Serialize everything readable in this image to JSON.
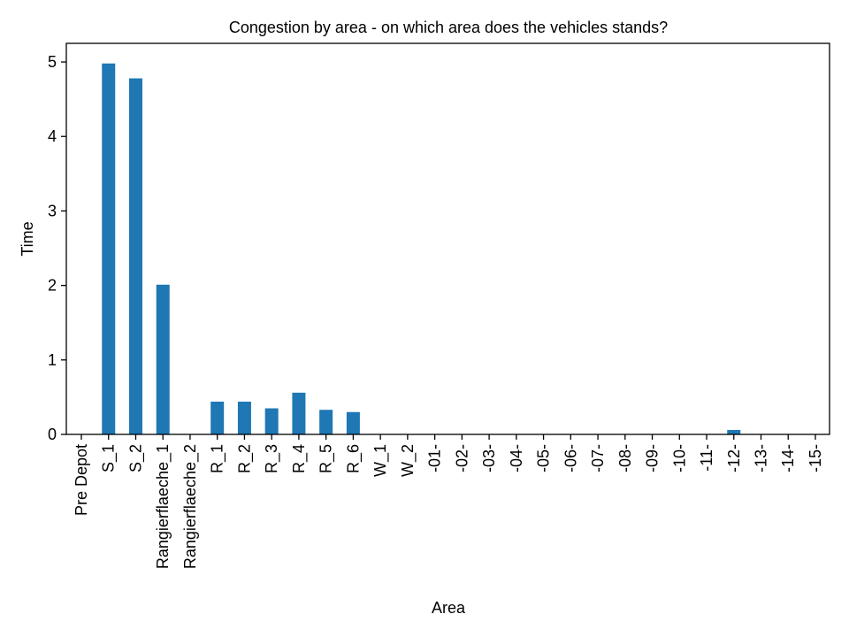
{
  "chart_data": {
    "type": "bar",
    "title": "Congestion by area - on which area does the vehicles stands?",
    "xlabel": "Area",
    "ylabel": "Time",
    "ylim": [
      0,
      5.25
    ],
    "yticks": [
      0,
      1,
      2,
      3,
      4,
      5
    ],
    "grid": false,
    "legend": "none",
    "bar_color": "#1f77b4",
    "categories": [
      "Pre Depot",
      "S_1",
      "S_2",
      "Rangierflaeche_1",
      "Rangierflaeche_2",
      "R_1",
      "R_2",
      "R_3",
      "R_4",
      "R_5",
      "R_6",
      "W_1",
      "W_2",
      "-01-",
      "-02-",
      "-03-",
      "-04-",
      "-05-",
      "-06-",
      "-07-",
      "-08-",
      "-09-",
      "-10-",
      "-11-",
      "-12-",
      "-13-",
      "-14-",
      "-15-"
    ],
    "values": [
      0,
      4.98,
      4.78,
      2.01,
      0,
      0.44,
      0.44,
      0.35,
      0.56,
      0.33,
      0.3,
      0,
      0,
      0,
      0,
      0,
      0,
      0,
      0,
      0,
      0,
      0,
      0,
      0,
      0.06,
      0,
      0,
      0
    ]
  }
}
